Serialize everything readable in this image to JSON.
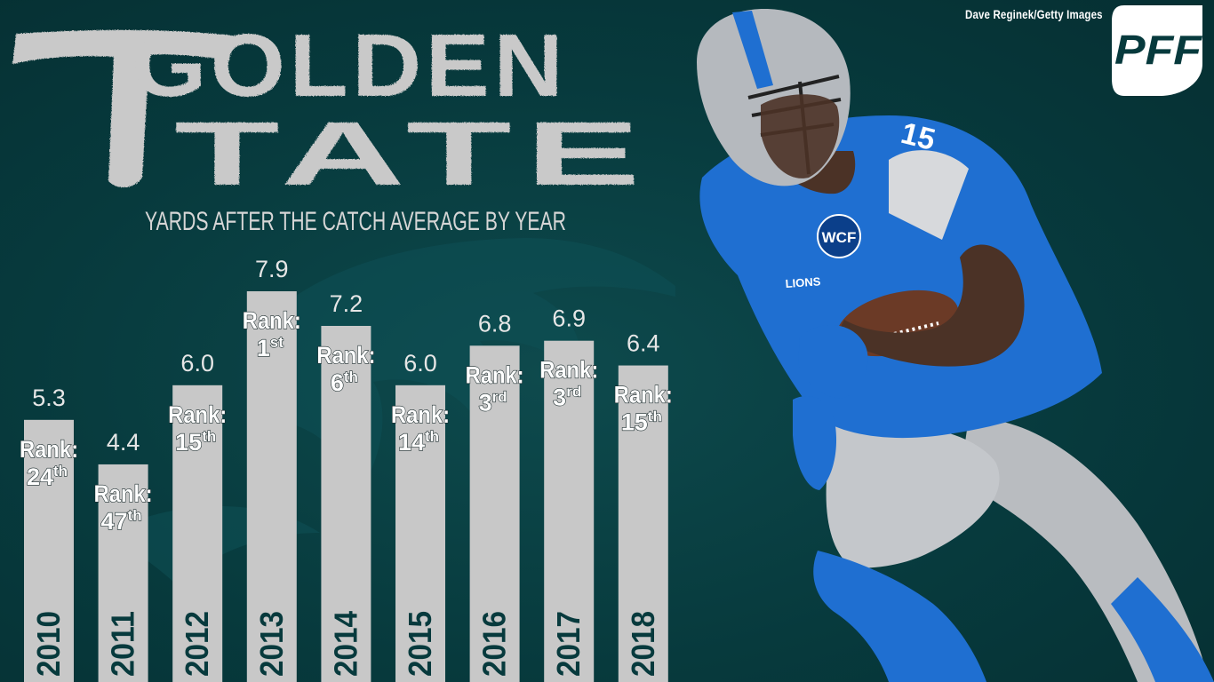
{
  "title": {
    "line1": "GOLDEN",
    "line2": "TATE"
  },
  "photo_credit": "Dave Reginek/Getty Images",
  "logo_text": "PFF",
  "player": {
    "jersey_number": "15",
    "team_wordmark": "LIONS",
    "patch": "WCF"
  },
  "colors": {
    "background": "#073a3d",
    "bar": "#c8c8c8",
    "text_light": "#ffffff",
    "title_gray": "#c9c9c9",
    "lions_blue": "#1f6fd1",
    "pants_silver": "#b9bcc0"
  },
  "chart_data": {
    "type": "bar",
    "title": "YARDS AFTER THE CATCH AVERAGE BY YEAR",
    "categories": [
      "2010",
      "2011",
      "2012",
      "2013",
      "2014",
      "2015",
      "2016",
      "2017",
      "2018"
    ],
    "values": [
      5.3,
      4.4,
      6.0,
      7.9,
      7.2,
      6.0,
      6.8,
      6.9,
      6.4
    ],
    "value_labels": [
      "5.3",
      "4.4",
      "6.0",
      "7.9",
      "7.2",
      "6.0",
      "6.8",
      "6.9",
      "6.4"
    ],
    "rank_label": "Rank:",
    "ranks": [
      {
        "num": "24",
        "suffix": "th"
      },
      {
        "num": "47",
        "suffix": "th"
      },
      {
        "num": "15",
        "suffix": "th"
      },
      {
        "num": "1",
        "suffix": "st"
      },
      {
        "num": "6",
        "suffix": "th"
      },
      {
        "num": "14",
        "suffix": "th"
      },
      {
        "num": "3",
        "suffix": "rd"
      },
      {
        "num": "3",
        "suffix": "rd"
      },
      {
        "num": "15",
        "suffix": "th"
      }
    ],
    "ylim": [
      0,
      9
    ],
    "grid": false,
    "legend": "none"
  }
}
